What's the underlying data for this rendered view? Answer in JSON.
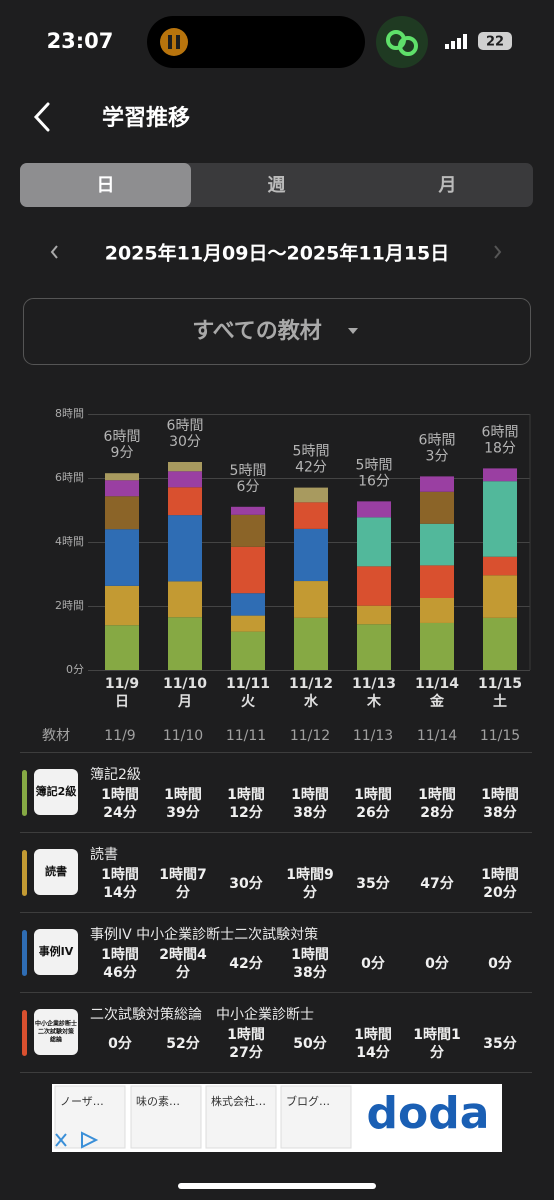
{
  "status_bar": {
    "time": "23:07",
    "battery": "22"
  },
  "header": {
    "title": "学習推移"
  },
  "tabs": [
    "日",
    "週",
    "月"
  ],
  "selected_tab": 0,
  "date_range": "2025年11月09日～2025年11月15日",
  "filter": "すべての教材",
  "chart_data": {
    "type": "bar",
    "stacked": true,
    "categories": [
      "11/9",
      "11/10",
      "11/11",
      "11/12",
      "11/13",
      "11/14",
      "11/15"
    ],
    "weekdays": [
      "日",
      "月",
      "火",
      "水",
      "木",
      "金",
      "土"
    ],
    "ylim": [
      0,
      8
    ],
    "yticks": [
      {
        "value": 0,
        "label": "0分"
      },
      {
        "value": 2,
        "label": "2時間"
      },
      {
        "value": 4,
        "label": "4時間"
      },
      {
        "value": 6,
        "label": "6時間"
      },
      {
        "value": 8,
        "label": "8時間"
      }
    ],
    "grid": true,
    "series": [
      {
        "name": "簿記2級",
        "color": "#86a944",
        "values": [
          1.4,
          1.65,
          1.2,
          1.63,
          1.43,
          1.47,
          1.63
        ]
      },
      {
        "name": "読書",
        "color": "#c39a33",
        "values": [
          1.23,
          1.12,
          0.5,
          1.15,
          0.58,
          0.78,
          1.33
        ]
      },
      {
        "name": "事例IV 中小企業診断士二次試験対策",
        "color": "#2f6db4",
        "values": [
          1.77,
          2.07,
          0.7,
          1.63,
          0,
          0,
          0
        ]
      },
      {
        "name": "二次試験対策総論　中小企業診断士",
        "color": "#d9502f",
        "values": [
          0,
          0.87,
          1.45,
          0.83,
          1.23,
          1.02,
          0.58
        ]
      },
      {
        "color": "#52b89b",
        "values": [
          0,
          0,
          0,
          0,
          1.53,
          1.3,
          2.36
        ]
      },
      {
        "color": "#8b6428",
        "values": [
          1.03,
          0,
          1.0,
          0,
          0,
          1.0,
          0
        ]
      },
      {
        "color": "#9a3fa2",
        "values": [
          0.5,
          0.5,
          0.25,
          0,
          0.5,
          0.48,
          0.4
        ]
      },
      {
        "color": "#a89a5f",
        "values": [
          0.22,
          0.29,
          0,
          0.46,
          0,
          0,
          0
        ]
      }
    ],
    "totals": [
      6.15,
      6.5,
      5.1,
      5.7,
      5.27,
      6.05,
      6.3
    ],
    "total_labels": [
      [
        "6時間",
        "9分"
      ],
      [
        "6時間",
        "30分"
      ],
      [
        "5時間",
        "6分"
      ],
      [
        "5時間",
        "42分"
      ],
      [
        "5時間",
        "16分"
      ],
      [
        "6時間",
        "3分"
      ],
      [
        "6時間",
        "18分"
      ]
    ]
  },
  "table": {
    "header": [
      "教材",
      "11/9",
      "11/10",
      "11/11",
      "11/12",
      "11/13",
      "11/14",
      "11/15"
    ],
    "rows": [
      {
        "color": "#86a944",
        "icon": [
          "簿記2級"
        ],
        "name": "簿記2級",
        "cells": [
          [
            "1時間",
            "24分"
          ],
          [
            "1時間",
            "39分"
          ],
          [
            "1時間",
            "12分"
          ],
          [
            "1時間",
            "38分"
          ],
          [
            "1時間",
            "26分"
          ],
          [
            "1時間",
            "28分"
          ],
          [
            "1時間",
            "38分"
          ]
        ]
      },
      {
        "color": "#c39a33",
        "icon": [
          "読書"
        ],
        "name": "読書",
        "cells": [
          [
            "1時間",
            "14分"
          ],
          [
            "1時間7",
            "分"
          ],
          [
            "30分"
          ],
          [
            "1時間9",
            "分"
          ],
          [
            "35分"
          ],
          [
            "47分"
          ],
          [
            "1時間",
            "20分"
          ]
        ]
      },
      {
        "color": "#2f6db4",
        "icon": [
          "事例IV"
        ],
        "name": "事例IV 中小企業診断士二次試験対策",
        "cells": [
          [
            "1時間",
            "46分"
          ],
          [
            "2時間4",
            "分"
          ],
          [
            "42分"
          ],
          [
            "1時間",
            "38分"
          ],
          [
            "0分"
          ],
          [
            "0分"
          ],
          [
            "0分"
          ]
        ]
      },
      {
        "color": "#d9502f",
        "icon": [
          "中小企業診断士",
          "二次試験対策",
          "総論"
        ],
        "name": "二次試験対策総論　中小企業診断士",
        "cells": [
          [
            "0分"
          ],
          [
            "52分"
          ],
          [
            "1時間",
            "27分"
          ],
          [
            "50分"
          ],
          [
            "1時間",
            "14分"
          ],
          [
            "1時間1",
            "分"
          ],
          [
            "35分"
          ]
        ]
      }
    ]
  },
  "ad": {
    "items": [
      "ノーザ…",
      "味の素…",
      "株式会社…",
      "ブログ…"
    ],
    "brand": "doda"
  }
}
